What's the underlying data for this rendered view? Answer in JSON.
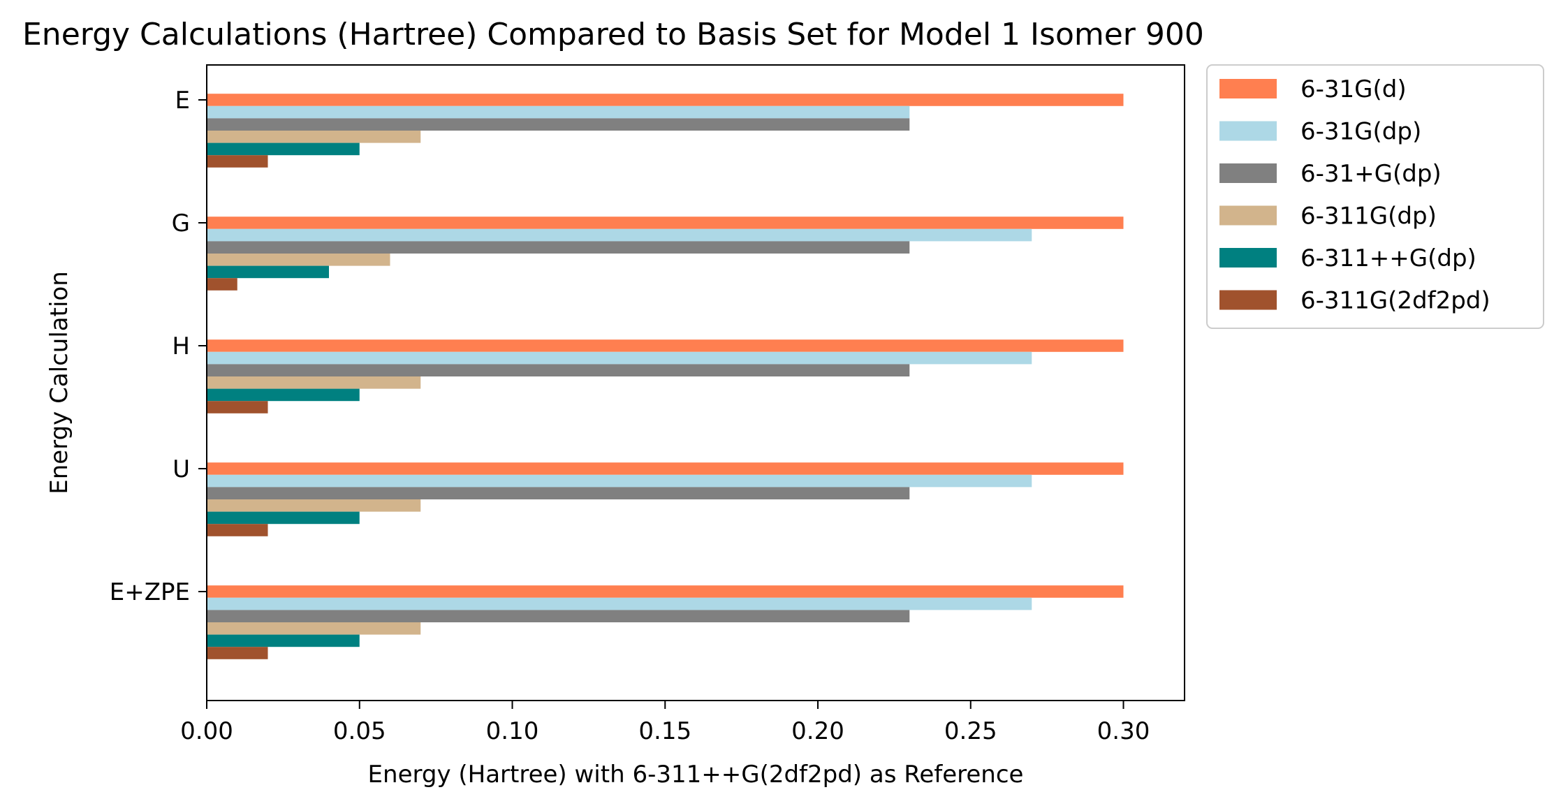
{
  "chart_data": {
    "type": "bar",
    "orientation": "horizontal",
    "title": "Energy Calculations (Hartree) Compared to Basis Set for Model 1 Isomer 900",
    "xlabel": "Energy (Hartree) with 6-311++G(2df2pd) as Reference",
    "ylabel": "Energy Calculation",
    "categories": [
      "E",
      "G",
      "H",
      "U",
      "E+ZPE"
    ],
    "xlim": [
      0,
      0.32
    ],
    "xticks": [
      "0.00",
      "0.05",
      "0.10",
      "0.15",
      "0.20",
      "0.25",
      "0.30"
    ],
    "grid": false,
    "legend_position": "outside-right",
    "series": [
      {
        "name": "6-31G(d)",
        "color": "#ff7f50",
        "values": [
          0.3,
          0.3,
          0.3,
          0.3,
          0.3
        ]
      },
      {
        "name": "6-31G(dp)",
        "color": "#add8e6",
        "values": [
          0.23,
          0.27,
          0.27,
          0.27,
          0.27
        ]
      },
      {
        "name": "6-31+G(dp)",
        "color": "#808080",
        "values": [
          0.23,
          0.23,
          0.23,
          0.23,
          0.23
        ]
      },
      {
        "name": "6-311G(dp)",
        "color": "#d2b48c",
        "values": [
          0.07,
          0.06,
          0.07,
          0.07,
          0.07
        ]
      },
      {
        "name": "6-311++G(dp)",
        "color": "#008080",
        "values": [
          0.05,
          0.04,
          0.05,
          0.05,
          0.05
        ]
      },
      {
        "name": "6-311G(2df2pd)",
        "color": "#a0522d",
        "values": [
          0.02,
          0.01,
          0.02,
          0.02,
          0.02
        ]
      }
    ]
  }
}
